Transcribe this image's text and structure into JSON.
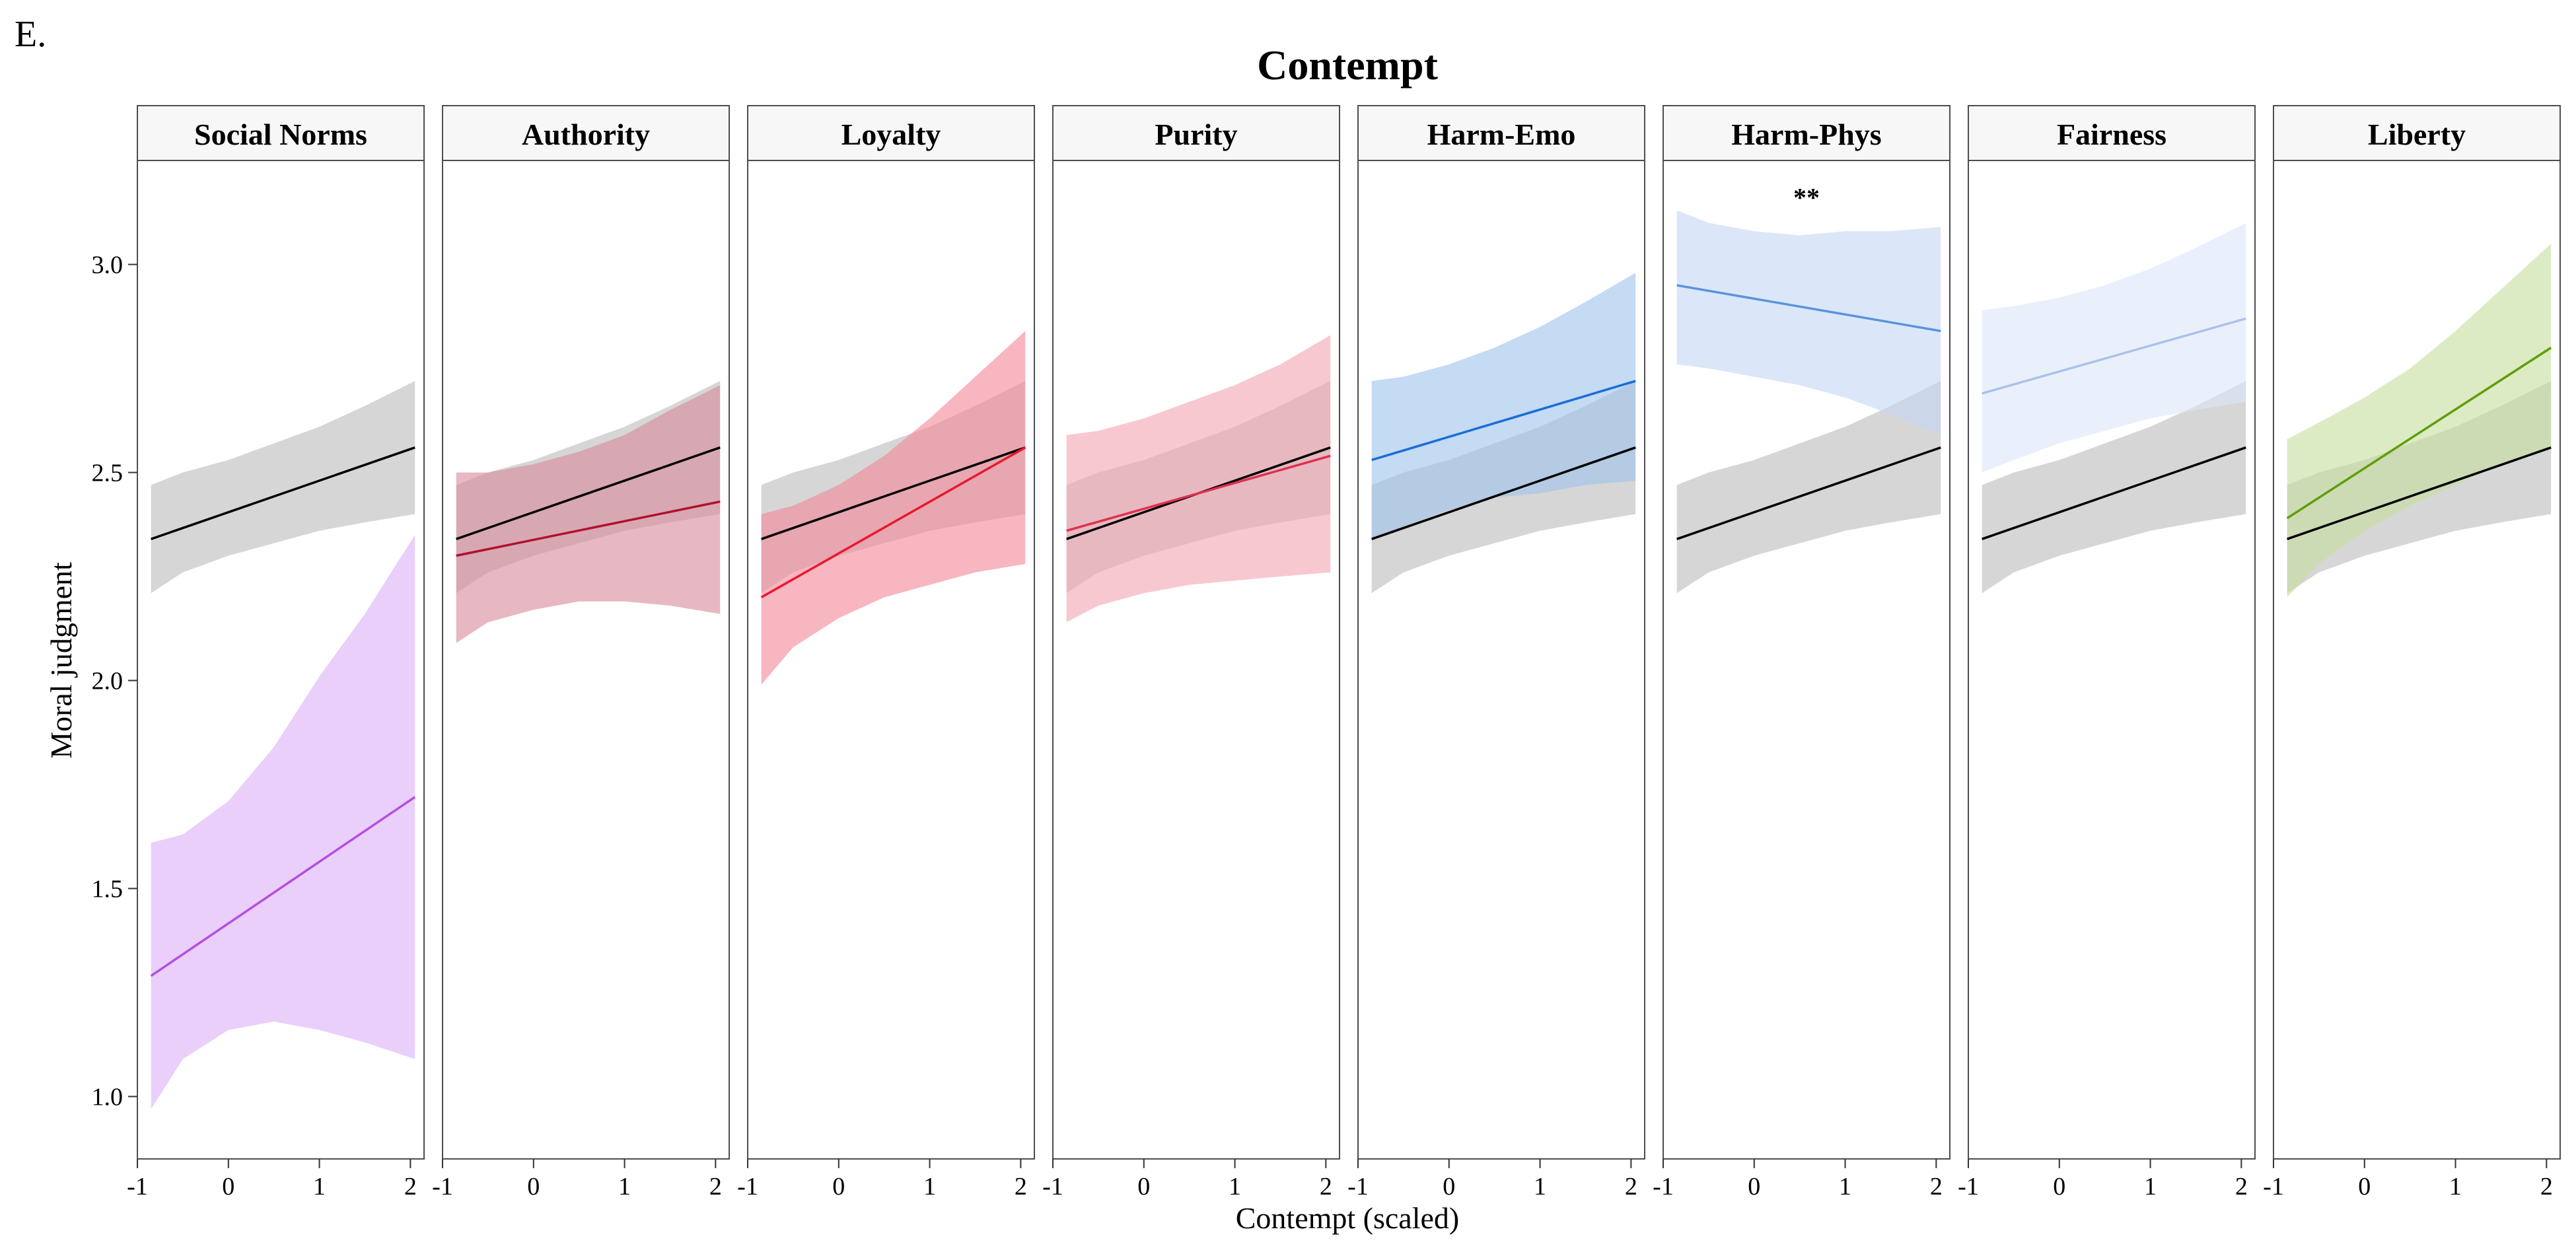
{
  "figure_label": "E.",
  "chart_data": {
    "type": "line",
    "title": "Contempt",
    "xlabel": "Contempt (scaled)",
    "ylabel": "Moral judgment",
    "xlim": [
      -1,
      2.15
    ],
    "ylim": [
      0.85,
      3.25
    ],
    "x_ticks": [
      -1,
      0,
      1,
      2
    ],
    "x_tick_labels": [
      "-1",
      "0",
      "1",
      "2"
    ],
    "y_ticks": [
      1.0,
      1.5,
      2.0,
      2.5,
      3.0
    ],
    "y_tick_labels": [
      "1.0",
      "1.5",
      "2.0",
      "2.5",
      "3.0"
    ],
    "grid": false,
    "legend": "none",
    "x_band": [
      -0.85,
      -0.5,
      0,
      0.5,
      1,
      1.5,
      2.05
    ],
    "reference": {
      "color": "#000000",
      "band_color": "#bdbdbd",
      "line": [
        [
          -0.85,
          2.34
        ],
        [
          2.05,
          2.56
        ]
      ],
      "lower": [
        2.21,
        2.26,
        2.3,
        2.33,
        2.36,
        2.38,
        2.4
      ],
      "upper": [
        2.47,
        2.5,
        2.53,
        2.57,
        2.61,
        2.66,
        2.72
      ]
    },
    "panels": [
      {
        "label": "Social Norms",
        "color": "#b44fe0",
        "band_color": "#dbb2f7",
        "line": [
          [
            -0.85,
            1.29
          ],
          [
            2.05,
            1.72
          ]
        ],
        "lower": [
          0.97,
          1.09,
          1.16,
          1.18,
          1.16,
          1.13,
          1.09
        ],
        "upper": [
          1.61,
          1.63,
          1.71,
          1.84,
          2.01,
          2.16,
          2.35
        ],
        "significance": ""
      },
      {
        "label": "Authority",
        "color": "#b3102e",
        "band_color": "#d98c9c",
        "line": [
          [
            -0.85,
            2.3
          ],
          [
            2.05,
            2.43
          ]
        ],
        "lower": [
          2.09,
          2.14,
          2.17,
          2.19,
          2.19,
          2.18,
          2.16
        ],
        "upper": [
          2.5,
          2.5,
          2.52,
          2.55,
          2.59,
          2.65,
          2.71
        ],
        "significance": ""
      },
      {
        "label": "Loyalty",
        "color": "#e8182e",
        "band_color": "#f2899a",
        "line": [
          [
            -0.85,
            2.2
          ],
          [
            2.05,
            2.56
          ]
        ],
        "lower": [
          1.99,
          2.08,
          2.15,
          2.2,
          2.23,
          2.26,
          2.28
        ],
        "upper": [
          2.4,
          2.42,
          2.47,
          2.54,
          2.63,
          2.73,
          2.84
        ],
        "significance": ""
      },
      {
        "label": "Purity",
        "color": "#e0304e",
        "band_color": "#f4a6b4",
        "line": [
          [
            -0.85,
            2.36
          ],
          [
            2.05,
            2.54
          ]
        ],
        "lower": [
          2.14,
          2.18,
          2.21,
          2.23,
          2.24,
          2.25,
          2.26
        ],
        "upper": [
          2.59,
          2.6,
          2.63,
          2.67,
          2.71,
          2.76,
          2.83
        ],
        "significance": ""
      },
      {
        "label": "Harm-Emo",
        "color": "#1a6ed6",
        "band_color": "#a2c3ec",
        "line": [
          [
            -0.85,
            2.53
          ],
          [
            2.05,
            2.72
          ]
        ],
        "lower": [
          2.34,
          2.37,
          2.41,
          2.44,
          2.45,
          2.47,
          2.48
        ],
        "upper": [
          2.72,
          2.73,
          2.76,
          2.8,
          2.85,
          2.91,
          2.98
        ],
        "significance": ""
      },
      {
        "label": "Harm-Phys",
        "color": "#5c93dd",
        "band_color": "#c5d9f3",
        "line": [
          [
            -0.85,
            2.95
          ],
          [
            2.05,
            2.84
          ]
        ],
        "lower": [
          2.76,
          2.75,
          2.73,
          2.71,
          2.68,
          2.64,
          2.59
        ],
        "upper": [
          3.13,
          3.1,
          3.08,
          3.07,
          3.08,
          3.08,
          3.09
        ],
        "significance": "**"
      },
      {
        "label": "Fairness",
        "color": "#a9c2ec",
        "band_color": "#dde7f9",
        "line": [
          [
            -0.85,
            2.69
          ],
          [
            2.05,
            2.87
          ]
        ],
        "lower": [
          2.5,
          2.53,
          2.57,
          2.6,
          2.63,
          2.65,
          2.67
        ],
        "upper": [
          2.89,
          2.9,
          2.92,
          2.95,
          2.99,
          3.04,
          3.1
        ],
        "significance": ""
      },
      {
        "label": "Liberty",
        "color": "#5e9e0a",
        "band_color": "#c6dfa0",
        "line": [
          [
            -0.85,
            2.39
          ],
          [
            2.05,
            2.8
          ]
        ],
        "lower": [
          2.2,
          2.28,
          2.36,
          2.42,
          2.47,
          2.52,
          2.56
        ],
        "upper": [
          2.58,
          2.62,
          2.68,
          2.75,
          2.84,
          2.94,
          3.05
        ],
        "significance": ""
      }
    ]
  }
}
